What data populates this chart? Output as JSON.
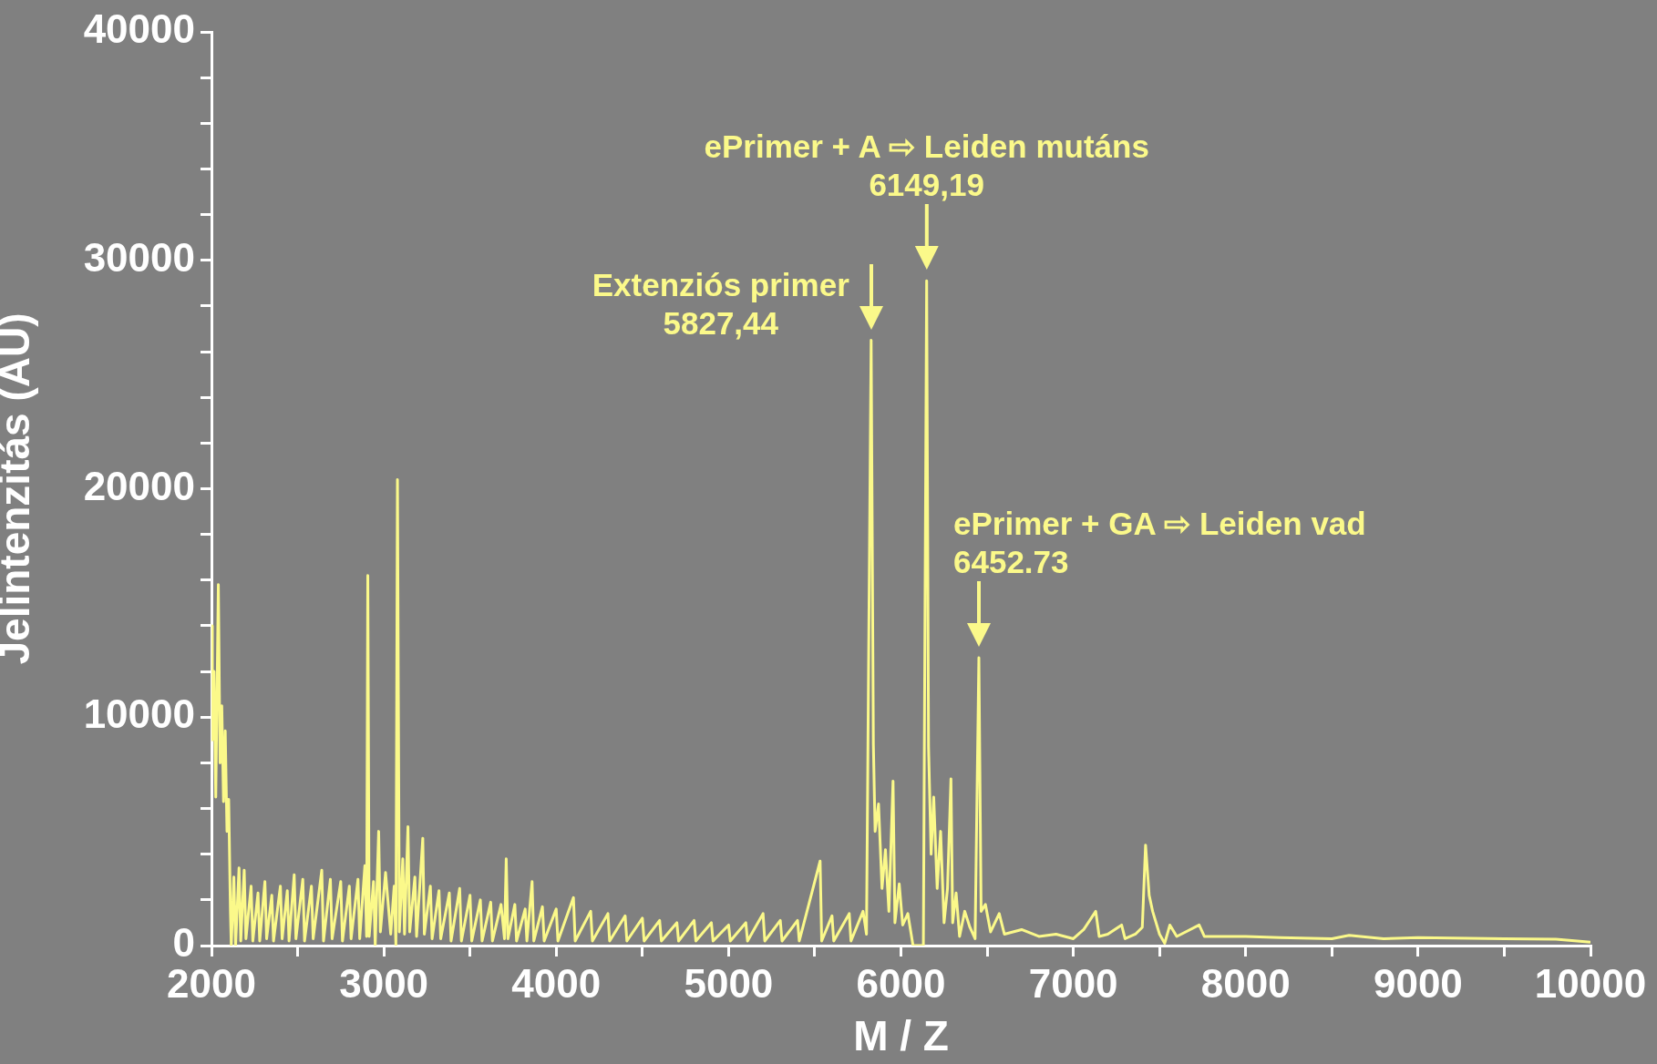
{
  "chart_data": {
    "type": "line",
    "xlabel": "M / Z",
    "ylabel": "Jelintenzitás (AU)",
    "color": "#fbf98a",
    "marker": "none",
    "xlim": [
      2000,
      10000
    ],
    "ylim": [
      0,
      40000
    ],
    "xticks": [
      2000,
      {
        "value": 2500,
        "label": null
      },
      3000,
      {
        "value": 3500,
        "label": null
      },
      4000,
      {
        "value": 4500,
        "label": null
      },
      5000,
      {
        "value": 5500,
        "label": null
      },
      6000,
      {
        "value": 6500,
        "label": null
      },
      7000,
      {
        "value": 7500,
        "label": null
      },
      8000,
      {
        "value": 8500,
        "label": null
      },
      9000,
      {
        "value": 9500,
        "label": null
      },
      10000
    ],
    "yticks": [
      0,
      {
        "value": 2000,
        "label": null
      },
      {
        "value": 4000,
        "label": null
      },
      {
        "value": 6000,
        "label": null
      },
      {
        "value": 8000,
        "label": null
      },
      10000,
      {
        "value": 12000,
        "label": null
      },
      {
        "value": 14000,
        "label": null
      },
      {
        "value": 16000,
        "label": null
      },
      {
        "value": 18000,
        "label": null
      },
      20000,
      {
        "value": 22000,
        "label": null
      },
      {
        "value": 24000,
        "label": null
      },
      {
        "value": 26000,
        "label": null
      },
      {
        "value": 28000,
        "label": null
      },
      30000,
      {
        "value": 32000,
        "label": null
      },
      {
        "value": 34000,
        "label": null
      },
      {
        "value": 36000,
        "label": null
      },
      {
        "value": 38000,
        "label": null
      },
      40000
    ],
    "x": [
      2000,
      2005,
      2015,
      2025,
      2040,
      2050,
      2060,
      2070,
      2080,
      2090,
      2100,
      2110,
      2115,
      2130,
      2140,
      2160,
      2170,
      2190,
      2200,
      2230,
      2240,
      2270,
      2280,
      2310,
      2320,
      2350,
      2360,
      2400,
      2410,
      2440,
      2450,
      2480,
      2490,
      2530,
      2540,
      2580,
      2590,
      2640,
      2650,
      2690,
      2700,
      2750,
      2760,
      2800,
      2810,
      2850,
      2860,
      2890,
      2900,
      2907,
      2915,
      2940,
      2950,
      2970,
      2980,
      3010,
      3040,
      3060,
      3070,
      3079,
      3090,
      3110,
      3120,
      3140,
      3150,
      3180,
      3190,
      3226,
      3235,
      3270,
      3280,
      3320,
      3330,
      3380,
      3390,
      3440,
      3450,
      3500,
      3510,
      3560,
      3570,
      3620,
      3630,
      3680,
      3700,
      3710,
      3720,
      3760,
      3770,
      3820,
      3830,
      3860,
      3870,
      3920,
      3930,
      4000,
      4010,
      4100,
      4110,
      4200,
      4210,
      4300,
      4310,
      4400,
      4410,
      4500,
      4510,
      4600,
      4610,
      4700,
      4710,
      4800,
      4810,
      4900,
      4910,
      5000,
      5010,
      5100,
      5110,
      5200,
      5210,
      5300,
      5310,
      5400,
      5410,
      5531,
      5540,
      5600,
      5610,
      5700,
      5710,
      5780,
      5800,
      5827,
      5840,
      5850,
      5870,
      5890,
      5910,
      5930,
      5954,
      5965,
      5990,
      6010,
      6040,
      6070,
      6130,
      6149,
      6160,
      6175,
      6190,
      6210,
      6230,
      6250,
      6270,
      6290,
      6300,
      6320,
      6340,
      6370,
      6400,
      6430,
      6452,
      6465,
      6490,
      6520,
      6570,
      6600,
      6700,
      6800,
      6900,
      7000,
      7060,
      7130,
      7150,
      7200,
      7280,
      7300,
      7360,
      7400,
      7419,
      7440,
      7460,
      7500,
      7530,
      7560,
      7600,
      7730,
      7760,
      8000,
      8200,
      8500,
      8600,
      8800,
      9000,
      9500,
      9800,
      10000
    ],
    "values": [
      14000,
      9000,
      12000,
      6500,
      15800,
      8000,
      10500,
      6300,
      9400,
      5000,
      6400,
      1500,
      0,
      3000,
      0,
      3400,
      200,
      3300,
      300,
      2600,
      200,
      2300,
      200,
      2800,
      300,
      2200,
      200,
      2600,
      300,
      2400,
      200,
      3100,
      300,
      2900,
      200,
      2600,
      300,
      3300,
      200,
      2900,
      300,
      2800,
      200,
      2600,
      300,
      2900,
      300,
      3500,
      400,
      16200,
      400,
      2800,
      0,
      5000,
      600,
      3200,
      500,
      2600,
      0,
      20400,
      600,
      3800,
      500,
      5200,
      600,
      3000,
      400,
      4700,
      500,
      2600,
      300,
      2400,
      300,
      2300,
      200,
      2500,
      200,
      2200,
      200,
      2000,
      200,
      1900,
      200,
      1800,
      300,
      3800,
      300,
      1800,
      200,
      1600,
      200,
      2800,
      200,
      1700,
      200,
      1600,
      200,
      2100,
      200,
      1500,
      200,
      1400,
      200,
      1300,
      200,
      1200,
      200,
      1100,
      200,
      1000,
      200,
      1100,
      200,
      1000,
      200,
      900,
      200,
      1000,
      200,
      1400,
      200,
      1100,
      200,
      1100,
      200,
      3700,
      200,
      1300,
      200,
      1400,
      200,
      1500,
      500,
      26500,
      8800,
      5000,
      6200,
      2500,
      4200,
      1500,
      7200,
      1000,
      2700,
      900,
      1400,
      0,
      0,
      29100,
      8700,
      4000,
      6500,
      2500,
      5000,
      1000,
      2500,
      7300,
      1000,
      2300,
      400,
      1500,
      800,
      300,
      12600,
      1500,
      1800,
      600,
      1400,
      500,
      700,
      400,
      500,
      300,
      700,
      1500,
      400,
      500,
      900,
      300,
      500,
      800,
      4400,
      2200,
      1500,
      500,
      100,
      900,
      400,
      900,
      400,
      400,
      350,
      300,
      450,
      300,
      350,
      300,
      280,
      150
    ],
    "annotations": [
      {
        "text": "Extenziós primer\n5827,44",
        "x": 5827,
        "y": 26500
      },
      {
        "text": "ePrimer + A ⇨ Leiden mutáns\n6149,19",
        "x": 6149,
        "y": 29100
      },
      {
        "text": "ePrimer + GA ⇨ Leiden vad\n6452.73",
        "x": 6452,
        "y": 12600
      }
    ]
  }
}
